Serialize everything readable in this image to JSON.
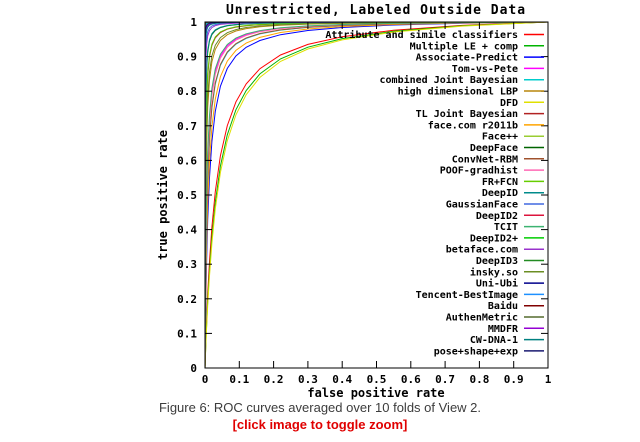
{
  "figure": {
    "caption": "Figure 6: ROC curves averaged over 10 folds of View 2.",
    "zoom_hint": "[click image to toggle zoom]",
    "zoom_hint_color": "#e00000"
  },
  "chart_data": {
    "type": "line",
    "title": "Unrestricted, Labeled Outside Data",
    "xlabel": "false positive rate",
    "ylabel": "true positive rate",
    "xlim": [
      0,
      1
    ],
    "ylim": [
      0,
      1
    ],
    "xticks": [
      0,
      0.1,
      0.2,
      0.3,
      0.4,
      0.5,
      0.6,
      0.7,
      0.8,
      0.9,
      1
    ],
    "yticks": [
      0,
      0.1,
      0.2,
      0.3,
      0.4,
      0.5,
      0.6,
      0.7,
      0.8,
      0.9,
      1
    ],
    "grid": false,
    "legend_position": "inside top right",
    "curve_model": "ROC curves approximated by tpr = fpr/(fpr + c*(1-fpr)) with c = ((1-acc)/acc)^2, where acc is the equal-error-rate accuracy read from the figure",
    "series": [
      {
        "name": "Attribute and simile classifiers",
        "color": "#ff0000",
        "acc": 0.853
      },
      {
        "name": "Multiple LE + comp",
        "color": "#00b400",
        "acc": 0.845
      },
      {
        "name": "Associate-Predict",
        "color": "#0000ff",
        "acc": 0.906
      },
      {
        "name": "Tom-vs-Pete",
        "color": "#ff00ff",
        "acc": 0.933
      },
      {
        "name": "combined Joint Bayesian",
        "color": "#00cccc",
        "acc": 0.924
      },
      {
        "name": "high dimensional LBP",
        "color": "#b8860b",
        "acc": 0.951
      },
      {
        "name": "DFD",
        "color": "#e0e000",
        "acc": 0.84
      },
      {
        "name": "TL Joint Bayesian",
        "color": "#b22222",
        "acc": 0.963
      },
      {
        "name": "face.com r2011b",
        "color": "#ffa500",
        "acc": 0.914
      },
      {
        "name": "Face++",
        "color": "#9acd32",
        "acc": 0.992
      },
      {
        "name": "DeepFace",
        "color": "#006400",
        "acc": 0.973
      },
      {
        "name": "ConvNet-RBM",
        "color": "#a0522d",
        "acc": 0.925
      },
      {
        "name": "POOF-gradhist",
        "color": "#ff69b4",
        "acc": 0.931
      },
      {
        "name": "FR+FCN",
        "color": "#66cd00",
        "acc": 0.964
      },
      {
        "name": "DeepID",
        "color": "#008b8b",
        "acc": 0.974
      },
      {
        "name": "GaussianFace",
        "color": "#4169e1",
        "acc": 0.985
      },
      {
        "name": "DeepID2",
        "color": "#dc143c",
        "acc": 0.991
      },
      {
        "name": "TCIT",
        "color": "#3cb371",
        "acc": 0.935
      },
      {
        "name": "DeepID2+",
        "color": "#00cd00",
        "acc": 0.995
      },
      {
        "name": "betaface.com",
        "color": "#9932cc",
        "acc": 0.982
      },
      {
        "name": "DeepID3",
        "color": "#228b22",
        "acc": 0.996
      },
      {
        "name": "insky.so",
        "color": "#6b8e23",
        "acc": 0.955
      },
      {
        "name": "Uni-Ubi",
        "color": "#00008b",
        "acc": 0.99
      },
      {
        "name": "Tencent-BestImage",
        "color": "#1e90ff",
        "acc": 0.996
      },
      {
        "name": "Baidu",
        "color": "#800000",
        "acc": 0.998
      },
      {
        "name": "AuthenMetric",
        "color": "#556b2f",
        "acc": 0.998
      },
      {
        "name": "MMDFR",
        "color": "#9400d3",
        "acc": 0.991
      },
      {
        "name": "CW-DNA-1",
        "color": "#008080",
        "acc": 0.989
      },
      {
        "name": "pose+shape+exp",
        "color": "#191970",
        "acc": 0.993
      }
    ]
  }
}
